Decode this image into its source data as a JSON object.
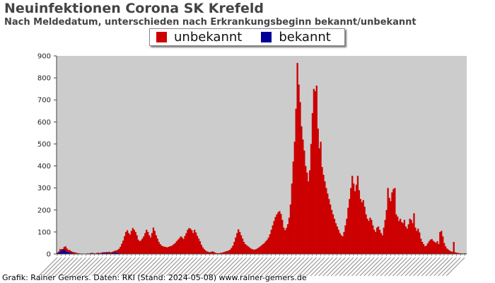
{
  "header": {
    "title": "Neuinfektionen Corona SK Krefeld",
    "subtitle": "Nach Meldedatum, unterschieden nach Erkrankungsbeginn bekannt/unbekannt"
  },
  "footer": {
    "text": "Grafik: Rainer Gemers. Daten: RKI (Stand: 2024-05-08) www.rainer-gemers.de"
  },
  "colors": {
    "unbekannt": "#cc0000",
    "bekannt": "#000099",
    "plot_bg": "#cccccc"
  },
  "chart_data": {
    "type": "bar",
    "stacked": true,
    "title": "Neuinfektionen Corona SK Krefeld",
    "subtitle": "Nach Meldedatum, unterschieden nach Erkrankungsbeginn bekannt/unbekannt",
    "ylim": [
      0,
      900
    ],
    "yticks": [
      0,
      100,
      200,
      300,
      400,
      500,
      600,
      700,
      800,
      900
    ],
    "grid": false,
    "legend_position": "top-center",
    "x_description": "weekly report dates (tick labels illegible)",
    "series": [
      {
        "name": "unbekannt",
        "color": "#cc0000",
        "values": [
          3,
          5,
          12,
          8,
          5,
          10,
          20,
          15,
          10,
          12,
          8,
          6,
          5,
          4,
          3,
          2,
          1,
          1,
          1,
          0,
          0,
          1,
          1,
          0,
          1,
          2,
          3,
          1,
          1,
          2,
          3,
          2,
          3,
          4,
          3,
          2,
          4,
          5,
          6,
          4,
          5,
          6,
          8,
          10,
          14,
          20,
          30,
          45,
          60,
          80,
          100,
          108,
          95,
          88,
          105,
          118,
          110,
          100,
          85,
          65,
          58,
          62,
          70,
          80,
          95,
          110,
          100,
          85,
          75,
          95,
          120,
          105,
          85,
          70,
          55,
          45,
          38,
          35,
          33,
          32,
          30,
          32,
          35,
          36,
          40,
          45,
          50,
          58,
          65,
          72,
          80,
          75,
          68,
          82,
          95,
          110,
          118,
          115,
          108,
          95,
          110,
          98,
          82,
          70,
          58,
          42,
          30,
          22,
          16,
          12,
          10,
          8,
          9,
          12,
          10,
          6,
          4,
          3,
          4,
          5,
          6,
          8,
          10,
          12,
          14,
          16,
          20,
          28,
          38,
          55,
          75,
          95,
          112,
          100,
          85,
          70,
          55,
          45,
          40,
          35,
          30,
          25,
          22,
          20,
          20,
          22,
          26,
          30,
          35,
          40,
          45,
          50,
          58,
          65,
          75,
          90,
          110,
          130,
          150,
          168,
          180,
          190,
          195,
          182,
          155,
          120,
          108,
          118,
          135,
          165,
          225,
          320,
          420,
          510,
          660,
          868,
          770,
          690,
          580,
          520,
          470,
          400,
          370,
          330,
          380,
          500,
          640,
          750,
          740,
          765,
          570,
          480,
          510,
          395,
          360,
          330,
          300,
          275,
          250,
          225,
          200,
          180,
          160,
          140,
          125,
          110,
          95,
          85,
          80,
          100,
          130,
          160,
          210,
          250,
          300,
          355,
          320,
          285,
          315,
          355,
          290,
          250,
          235,
          245,
          215,
          180,
          160,
          150,
          165,
          155,
          130,
          110,
          100,
          120,
          125,
          110,
          95,
          85,
          120,
          155,
          200,
          300,
          255,
          240,
          280,
          295,
          300,
          180,
          170,
          150,
          160,
          145,
          140,
          155,
          125,
          115,
          135,
          160,
          155,
          140,
          185,
          120,
          105,
          115,
          98,
          70,
          55,
          45,
          35,
          38,
          48,
          58,
          65,
          68,
          60,
          55,
          50,
          58,
          45,
          100,
          105,
          80,
          50,
          35,
          25,
          20,
          15,
          12,
          10,
          55,
          8,
          6,
          5,
          4,
          3,
          3,
          2,
          3,
          2
        ]
      },
      {
        "name": "bekannt",
        "color": "#000099",
        "values": [
          4,
          6,
          10,
          14,
          18,
          22,
          15,
          10,
          8,
          6,
          5,
          4,
          3,
          3,
          2,
          2,
          2,
          1,
          1,
          1,
          1,
          1,
          2,
          2,
          3,
          3,
          2,
          2,
          2,
          3,
          3,
          2,
          3,
          4,
          5,
          6,
          5,
          4,
          4,
          3,
          5,
          6,
          7,
          6,
          5,
          4,
          3,
          2,
          1,
          1,
          0,
          0,
          0,
          0,
          0,
          0,
          0,
          0,
          0,
          0,
          0,
          0,
          0,
          0,
          0,
          0,
          0,
          0,
          0,
          0,
          0,
          0,
          0,
          0,
          0,
          0,
          0,
          0,
          0,
          0,
          0,
          0,
          0,
          0,
          0,
          0,
          0,
          0,
          0,
          0,
          0,
          0,
          0,
          0,
          0,
          0,
          0,
          0,
          0,
          0,
          0,
          0,
          0,
          0,
          0,
          0,
          0,
          0,
          0,
          0,
          0,
          0,
          0,
          0,
          0,
          0,
          0,
          0,
          0,
          0,
          0,
          0,
          0,
          0,
          0,
          0,
          0,
          0,
          0,
          0,
          0,
          0,
          0,
          0,
          0,
          0,
          0,
          0,
          0,
          0,
          0,
          0,
          0,
          0,
          0,
          0,
          0,
          0,
          0,
          0,
          0,
          0,
          0,
          0,
          0,
          0,
          0,
          0,
          0,
          0,
          0,
          0,
          0,
          0,
          0,
          0,
          0,
          0,
          0,
          0,
          0,
          0,
          0,
          0,
          0,
          0,
          0,
          0,
          0,
          0,
          0,
          0,
          0,
          0,
          0,
          0,
          0,
          0,
          0,
          0,
          0,
          0,
          0,
          0,
          0,
          0,
          0,
          0,
          0,
          0,
          0,
          0,
          0,
          0,
          0,
          0,
          0,
          0,
          0,
          0,
          0,
          0,
          0,
          0,
          0,
          0,
          0,
          0,
          0,
          0,
          0,
          0,
          0,
          0,
          0,
          0,
          0,
          0,
          0,
          0,
          0,
          0,
          0,
          0,
          0,
          0,
          0,
          0,
          0,
          0,
          0,
          0,
          0,
          0,
          0,
          0,
          0,
          0,
          0,
          0,
          0,
          0,
          0,
          0,
          0,
          0,
          0,
          0,
          0,
          0,
          0,
          0,
          0,
          0,
          0,
          0,
          0,
          0,
          0,
          0,
          0,
          0,
          0,
          0,
          0,
          0,
          0,
          0,
          0,
          0,
          0,
          0,
          0,
          0,
          0,
          0,
          0,
          0,
          0,
          0,
          0,
          0,
          0,
          0,
          0,
          0,
          0,
          0,
          0,
          0,
          0,
          0,
          0,
          0,
          0,
          0,
          0,
          0,
          0,
          0,
          0,
          0,
          0,
          0,
          0,
          0,
          0,
          0,
          0,
          0,
          0,
          0,
          0,
          0,
          0,
          0
        ]
      }
    ]
  }
}
